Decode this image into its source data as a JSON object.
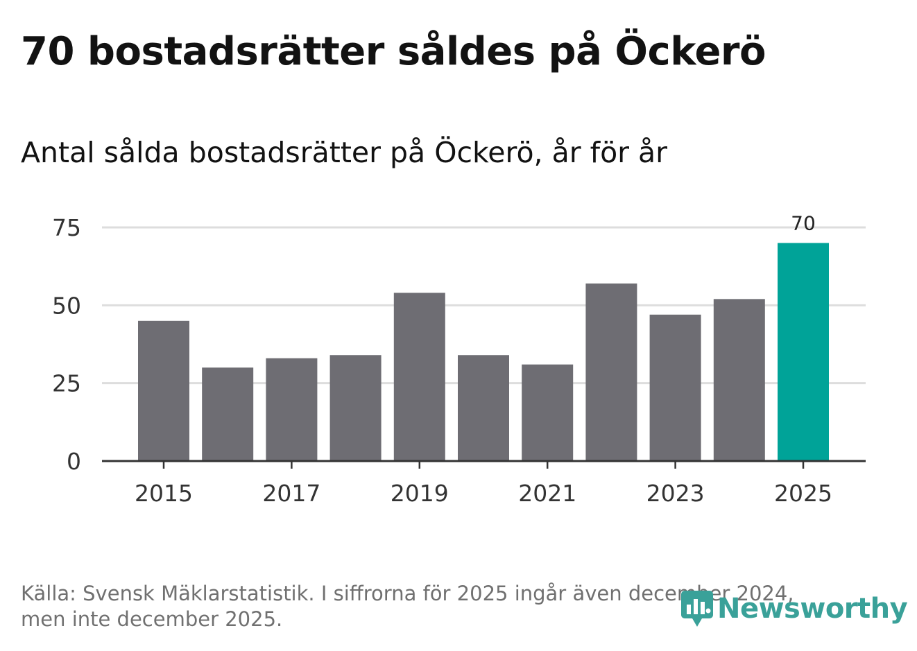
{
  "header": {
    "title": "70 bostadsrätter såldes på Öckerö",
    "subtitle": "Antal sålda bostadsrätter på Öckerö, år för år"
  },
  "chart_data": {
    "type": "bar",
    "title": "70 bostadsrätter såldes på Öckerö",
    "subtitle": "Antal sålda bostadsrätter på Öckerö, år för år",
    "xlabel": "",
    "ylabel": "",
    "categories": [
      "2015",
      "2016",
      "2017",
      "2018",
      "2019",
      "2020",
      "2021",
      "2022",
      "2023",
      "2024",
      "2025"
    ],
    "values": [
      45,
      30,
      33,
      34,
      54,
      34,
      31,
      57,
      47,
      52,
      70
    ],
    "x_tick_labels": [
      "2015",
      "2017",
      "2019",
      "2021",
      "2023",
      "2025"
    ],
    "y_ticks": [
      "0",
      "25",
      "50",
      "75"
    ],
    "ylim": [
      0,
      75
    ],
    "grid": true,
    "highlight_index": 10,
    "highlight_label": "70",
    "colors": {
      "bar": "#6e6d73",
      "highlight": "#00a398",
      "grid": "#dddddd",
      "axis": "#333333"
    }
  },
  "footer": {
    "source_line1": "Källa: Svensk Mäklarstatistik. I siffrorna för 2025 ingår även december 2024,",
    "source_line2": "men inte december 2025."
  },
  "brand": {
    "name": "Newsworthy",
    "icon": "newsworthy-logo-icon",
    "color": "#3aa199"
  }
}
